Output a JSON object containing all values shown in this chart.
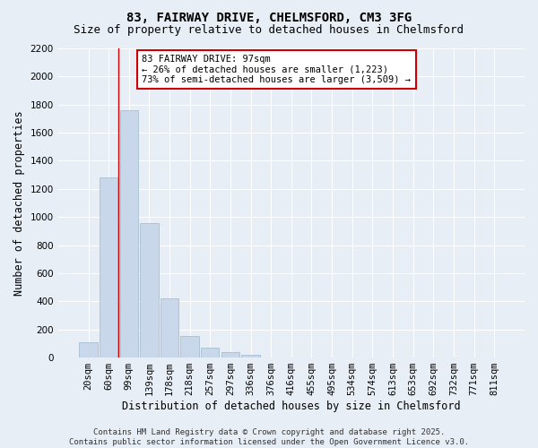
{
  "title1": "83, FAIRWAY DRIVE, CHELMSFORD, CM3 3FG",
  "title2": "Size of property relative to detached houses in Chelmsford",
  "xlabel": "Distribution of detached houses by size in Chelmsford",
  "ylabel": "Number of detached properties",
  "categories": [
    "20sqm",
    "60sqm",
    "99sqm",
    "139sqm",
    "178sqm",
    "218sqm",
    "257sqm",
    "297sqm",
    "336sqm",
    "376sqm",
    "416sqm",
    "455sqm",
    "495sqm",
    "534sqm",
    "574sqm",
    "613sqm",
    "653sqm",
    "692sqm",
    "732sqm",
    "771sqm",
    "811sqm"
  ],
  "values": [
    110,
    1280,
    1760,
    960,
    420,
    155,
    70,
    38,
    20,
    0,
    0,
    0,
    0,
    0,
    0,
    0,
    0,
    0,
    0,
    0,
    0
  ],
  "bar_color": "#c8d8ea",
  "bar_edge_color": "#a0b8cc",
  "background_color": "#e8eef5",
  "grid_color": "#ffffff",
  "vline_color": "#cc0000",
  "vline_pos": 1.5,
  "annotation_line1": "83 FAIRWAY DRIVE: 97sqm",
  "annotation_line2": "← 26% of detached houses are smaller (1,223)",
  "annotation_line3": "73% of semi-detached houses are larger (3,509) →",
  "annotation_box_color": "#cc0000",
  "ylim": [
    0,
    2200
  ],
  "yticks": [
    0,
    200,
    400,
    600,
    800,
    1000,
    1200,
    1400,
    1600,
    1800,
    2000,
    2200
  ],
  "footer1": "Contains HM Land Registry data © Crown copyright and database right 2025.",
  "footer2": "Contains public sector information licensed under the Open Government Licence v3.0.",
  "title1_fontsize": 10,
  "title2_fontsize": 9,
  "xlabel_fontsize": 8.5,
  "ylabel_fontsize": 8.5,
  "tick_fontsize": 7.5,
  "annotation_fontsize": 7.5,
  "footer_fontsize": 6.5
}
